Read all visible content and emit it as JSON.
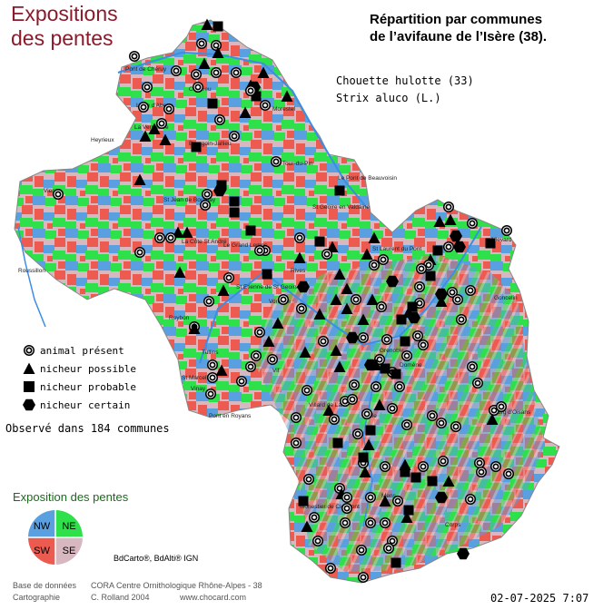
{
  "title_left": [
    "Expositions",
    "des pentes"
  ],
  "title_right": [
    "Répartition par communes",
    "de l’avifaune de l’Isère (38)."
  ],
  "species": {
    "common_name": "Chouette hulotte  (33)",
    "latin_name": "Strix aluco (L.)"
  },
  "legend": [
    {
      "symbol": "circle",
      "label": "animal présent"
    },
    {
      "symbol": "triangle",
      "label": "nicheur possible"
    },
    {
      "symbol": "square",
      "label": "nicheur probable"
    },
    {
      "symbol": "hexagon",
      "label": "nicheur certain"
    }
  ],
  "observed_text": "Observé dans 184 communes",
  "exposition": {
    "title": "Exposition des pentes",
    "quadrants": [
      {
        "label": "NW",
        "color": "#5aa0e0"
      },
      {
        "label": "NE",
        "color": "#2ee04a"
      },
      {
        "label": "SW",
        "color": "#ec5a50"
      },
      {
        "label": "SE",
        "color": "#d8b8c0"
      }
    ]
  },
  "ign_credit": "BdCarto®, BdAlti® IGN",
  "footer": {
    "line1_label": "Base de données",
    "line1_value": "CORA Centre Ornithologique Rhône-Alpes - 38",
    "line2_label": "Cartographie",
    "line2_value": "C. Rolland 2004",
    "website": "www.chocard.com"
  },
  "timestamp": "02-07-2025 7:07",
  "place_labels": [
    "Pont de Chéruy",
    "Crémieu",
    "Morestel",
    "L'Isle d'Abeau",
    "La Verpillière",
    "Heyrieux",
    "Bourgoin-Jallieu",
    "La Tour-du-Pin",
    "Le Pont de Beauvoisin",
    "Vienne",
    "St Jean de Bournay",
    "St Geoire en Valdaine",
    "St Laurent du Pont",
    "La Côte St André",
    "Le Grand Lemps",
    "Allevard",
    "Roussillon",
    "Rives",
    "St Etienne de St Geoirs",
    "Goncelin",
    "Voreppe",
    "Roybon",
    "Grenoble",
    "St Marcellin",
    "Domène",
    "Vif",
    "Villard de Lans",
    "Vizille",
    "Bourg d'Oisans",
    "Monestier de Clermont",
    "Mens",
    "Corps",
    "Pont en Royans",
    "Tullins",
    "Vinay"
  ],
  "colors": {
    "title_left": "#8b1a2b",
    "expo_title": "#1a6b1a",
    "river": "#3a8ee8"
  }
}
